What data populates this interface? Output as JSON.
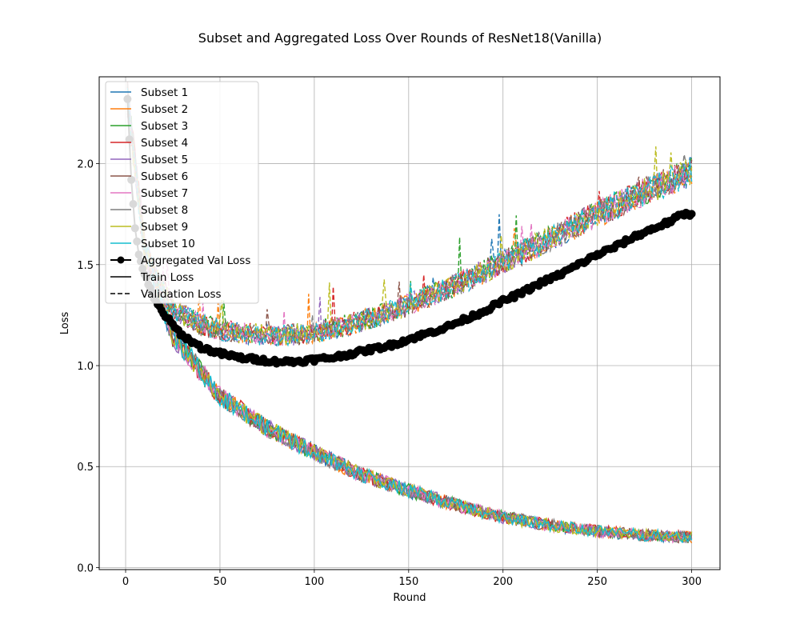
{
  "chart_data": {
    "type": "line",
    "title": "Subset and Aggregated Loss Over Rounds of ResNet18(Vanilla)",
    "xlabel": "Round",
    "ylabel": "Loss",
    "xlim": [
      -14,
      315
    ],
    "ylim": [
      -0.01,
      2.43
    ],
    "xticks": [
      0,
      50,
      100,
      150,
      200,
      250,
      300
    ],
    "yticks": [
      0.0,
      0.5,
      1.0,
      1.5,
      2.0
    ],
    "xtick_labels": [
      "0",
      "50",
      "100",
      "150",
      "200",
      "250",
      "300"
    ],
    "ytick_labels": [
      "0.0",
      "0.5",
      "1.0",
      "1.5",
      "2.0"
    ],
    "grid": true,
    "legend_position": "top-left",
    "rounds": [
      1,
      300
    ],
    "subsets": [
      {
        "name": "Subset 1",
        "color": "#1f77b4"
      },
      {
        "name": "Subset 2",
        "color": "#ff7f0e"
      },
      {
        "name": "Subset 3",
        "color": "#2ca02c"
      },
      {
        "name": "Subset 4",
        "color": "#d62728"
      },
      {
        "name": "Subset 5",
        "color": "#9467bd"
      },
      {
        "name": "Subset 6",
        "color": "#8c564b"
      },
      {
        "name": "Subset 7",
        "color": "#e377c2"
      },
      {
        "name": "Subset 8",
        "color": "#7f7f7f"
      },
      {
        "name": "Subset 9",
        "color": "#bcbd22"
      },
      {
        "name": "Subset 10",
        "color": "#17becf"
      }
    ],
    "train_loss_trend": {
      "x": [
        1,
        10,
        25,
        50,
        75,
        100,
        125,
        150,
        175,
        200,
        225,
        250,
        275,
        300
      ],
      "y": [
        2.32,
        1.58,
        1.15,
        0.85,
        0.69,
        0.57,
        0.46,
        0.38,
        0.31,
        0.25,
        0.21,
        0.18,
        0.16,
        0.15
      ]
    },
    "validation_loss_trend": {
      "x": [
        1,
        10,
        25,
        40,
        60,
        80,
        100,
        125,
        150,
        175,
        200,
        225,
        250,
        275,
        300
      ],
      "y": [
        2.32,
        1.55,
        1.28,
        1.2,
        1.16,
        1.15,
        1.16,
        1.22,
        1.3,
        1.4,
        1.51,
        1.63,
        1.75,
        1.86,
        1.96
      ]
    },
    "aggregated_val_loss": {
      "name": "Aggregated Val Loss",
      "color": "#000000",
      "x": [
        1,
        3,
        5,
        7,
        10,
        15,
        20,
        25,
        30,
        40,
        50,
        60,
        70,
        80,
        90,
        100,
        110,
        120,
        130,
        140,
        150,
        160,
        170,
        180,
        190,
        200,
        210,
        220,
        230,
        240,
        250,
        260,
        270,
        280,
        290,
        295,
        300
      ],
      "y": [
        2.32,
        1.92,
        1.68,
        1.55,
        1.45,
        1.33,
        1.26,
        1.2,
        1.15,
        1.09,
        1.06,
        1.04,
        1.03,
        1.02,
        1.02,
        1.03,
        1.04,
        1.06,
        1.08,
        1.1,
        1.13,
        1.16,
        1.19,
        1.23,
        1.27,
        1.32,
        1.36,
        1.41,
        1.45,
        1.5,
        1.55,
        1.59,
        1.64,
        1.68,
        1.72,
        1.75,
        1.75
      ]
    },
    "legend": {
      "subset_entries": [
        "Subset 1",
        "Subset 2",
        "Subset 3",
        "Subset 4",
        "Subset 5",
        "Subset 6",
        "Subset 7",
        "Subset 8",
        "Subset 9",
        "Subset 10"
      ],
      "aggregated_label": "Aggregated Val Loss",
      "train_label": "Train Loss",
      "validation_label": "Validation Loss"
    }
  }
}
